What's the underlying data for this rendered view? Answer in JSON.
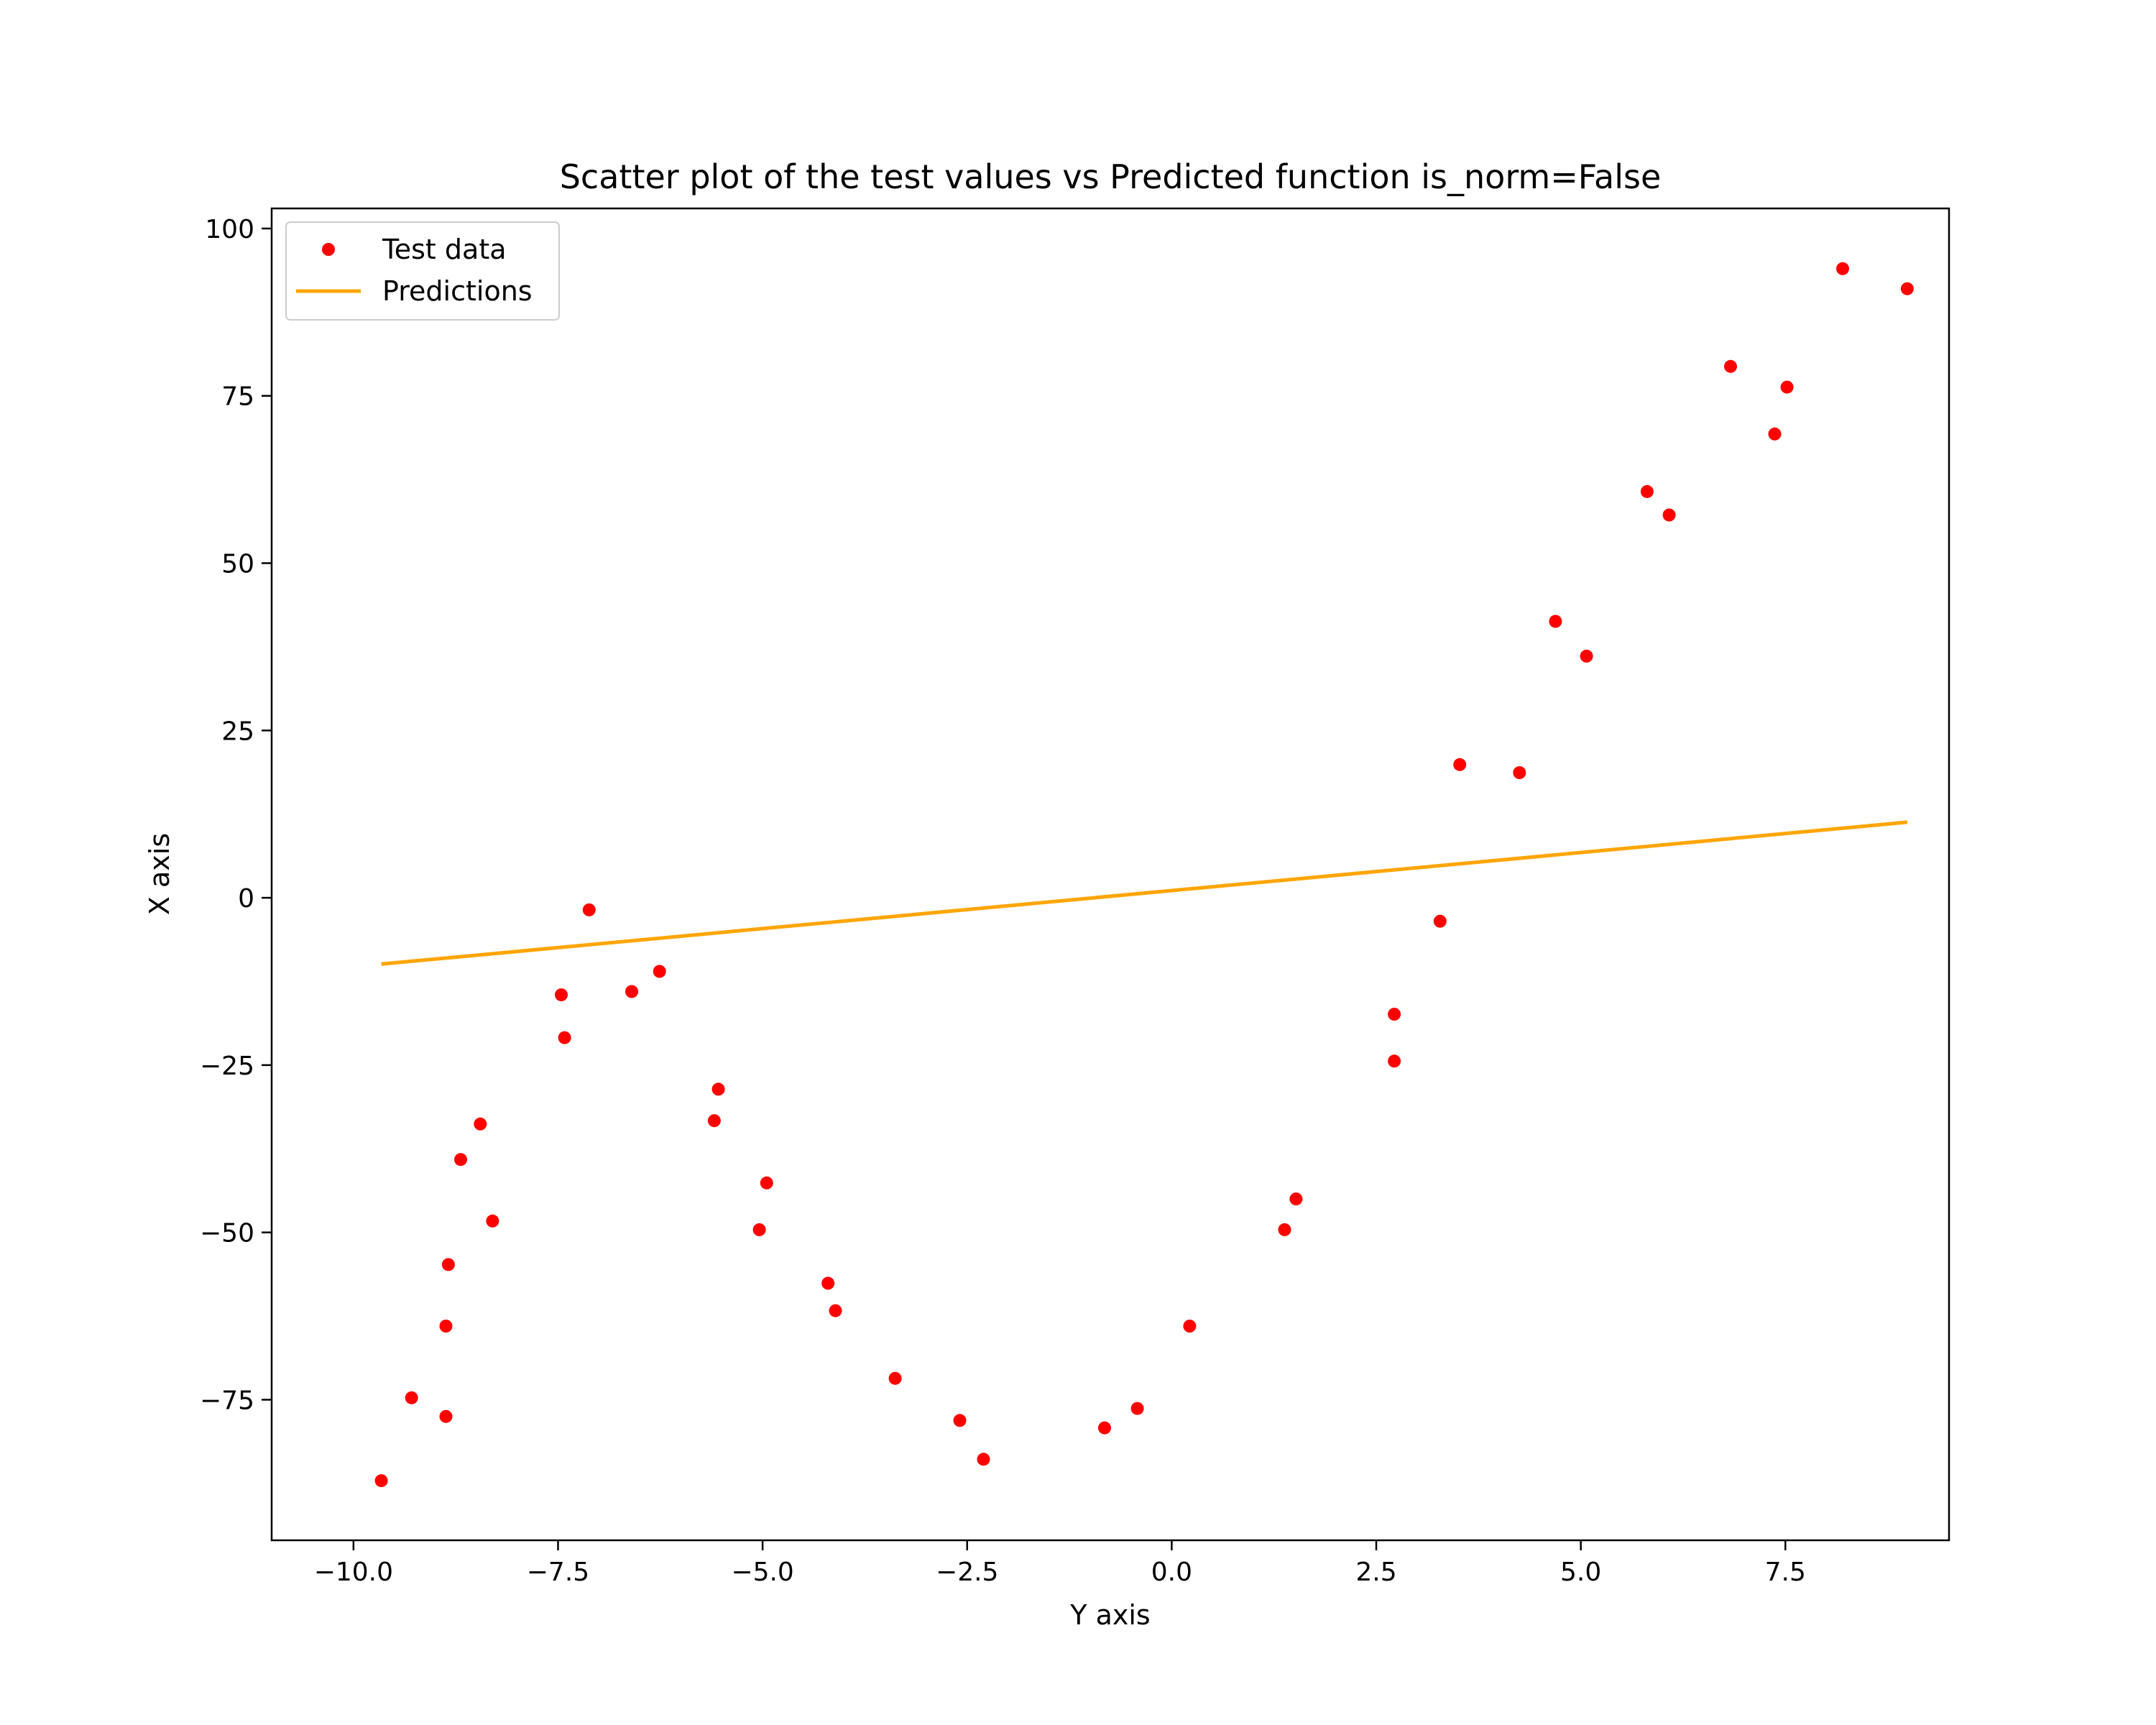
{
  "chart_data": {
    "type": "scatter",
    "title": "Scatter plot of the test values vs Predicted function is_norm=False",
    "xlabel": "Y axis",
    "ylabel": "X axis",
    "xlim": [
      -11.0,
      9.5
    ],
    "ylim": [
      -96.0,
      103.0
    ],
    "xticks": [
      -10.0,
      -7.5,
      -5.0,
      -2.5,
      0.0,
      2.5,
      5.0,
      7.5
    ],
    "xtick_labels": [
      "−10.0",
      "−7.5",
      "−5.0",
      "−2.5",
      "0.0",
      "2.5",
      "5.0",
      "7.5"
    ],
    "yticks": [
      100,
      75,
      50,
      25,
      0,
      -25,
      -50,
      -75
    ],
    "ytick_labels": [
      "100",
      "75",
      "50",
      "25",
      "0",
      "−25",
      "−50",
      "−75"
    ],
    "grid": false,
    "legend": {
      "position": "top-left",
      "entries": [
        "Test data",
        "Predictions"
      ]
    },
    "series": [
      {
        "name": "Test data",
        "kind": "scatter",
        "color": "#ff0000",
        "points": [
          [
            -9.66,
            -87.1
          ],
          [
            -9.29,
            -74.7
          ],
          [
            -8.87,
            -77.5
          ],
          [
            -8.87,
            -64.0
          ],
          [
            -8.84,
            -54.8
          ],
          [
            -8.69,
            -39.1
          ],
          [
            -8.45,
            -33.8
          ],
          [
            -8.3,
            -48.3
          ],
          [
            -7.46,
            -14.5
          ],
          [
            -7.42,
            -20.9
          ],
          [
            -7.12,
            -1.8
          ],
          [
            -6.6,
            -14.0
          ],
          [
            -6.26,
            -11.0
          ],
          [
            -5.59,
            -33.3
          ],
          [
            -5.54,
            -28.6
          ],
          [
            -5.04,
            -49.6
          ],
          [
            -4.95,
            -42.6
          ],
          [
            -4.2,
            -57.6
          ],
          [
            -4.11,
            -61.7
          ],
          [
            -3.38,
            -71.8
          ],
          [
            -2.59,
            -78.1
          ],
          [
            -2.3,
            -83.9
          ],
          [
            -0.82,
            -79.2
          ],
          [
            -0.42,
            -76.3
          ],
          [
            0.22,
            -64.0
          ],
          [
            1.38,
            -49.6
          ],
          [
            1.52,
            -45.0
          ],
          [
            2.72,
            -17.4
          ],
          [
            2.72,
            -24.4
          ],
          [
            3.28,
            -3.5
          ],
          [
            3.52,
            19.9
          ],
          [
            4.25,
            18.7
          ],
          [
            4.69,
            41.3
          ],
          [
            5.07,
            36.1
          ],
          [
            5.81,
            60.7
          ],
          [
            6.08,
            57.2
          ],
          [
            6.83,
            79.4
          ],
          [
            7.37,
            69.3
          ],
          [
            7.52,
            76.3
          ],
          [
            8.2,
            94.0
          ],
          [
            8.99,
            91.0
          ]
        ]
      },
      {
        "name": "Predictions",
        "kind": "line",
        "color": "#ffa500",
        "points": [
          [
            -9.66,
            -9.9
          ],
          [
            8.99,
            11.3
          ]
        ]
      }
    ]
  }
}
